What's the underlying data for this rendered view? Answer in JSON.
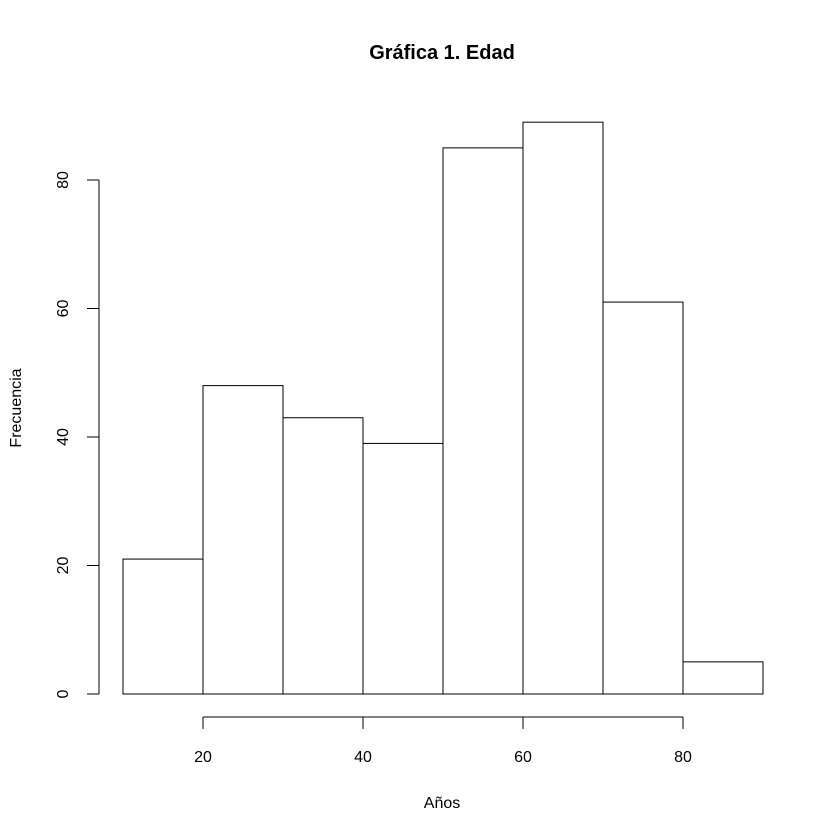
{
  "chart_data": {
    "type": "bar",
    "subtype": "histogram",
    "title": "Gráfica 1. Edad",
    "xlabel": "Años",
    "ylabel": "Frecuencia",
    "bins": [
      {
        "from": 10,
        "to": 20,
        "value": 21
      },
      {
        "from": 20,
        "to": 30,
        "value": 48
      },
      {
        "from": 30,
        "to": 40,
        "value": 43
      },
      {
        "from": 40,
        "to": 50,
        "value": 39
      },
      {
        "from": 50,
        "to": 60,
        "value": 85
      },
      {
        "from": 60,
        "to": 70,
        "value": 89
      },
      {
        "from": 70,
        "to": 80,
        "value": 61
      },
      {
        "from": 80,
        "to": 90,
        "value": 5
      }
    ],
    "xticks": [
      20,
      40,
      60,
      80
    ],
    "yticks": [
      0,
      20,
      40,
      60,
      80
    ],
    "xlim": [
      10,
      90
    ],
    "ylim": [
      0,
      89
    ],
    "grid": false,
    "bar_fill": "#ffffff",
    "bar_stroke": "#000000"
  }
}
